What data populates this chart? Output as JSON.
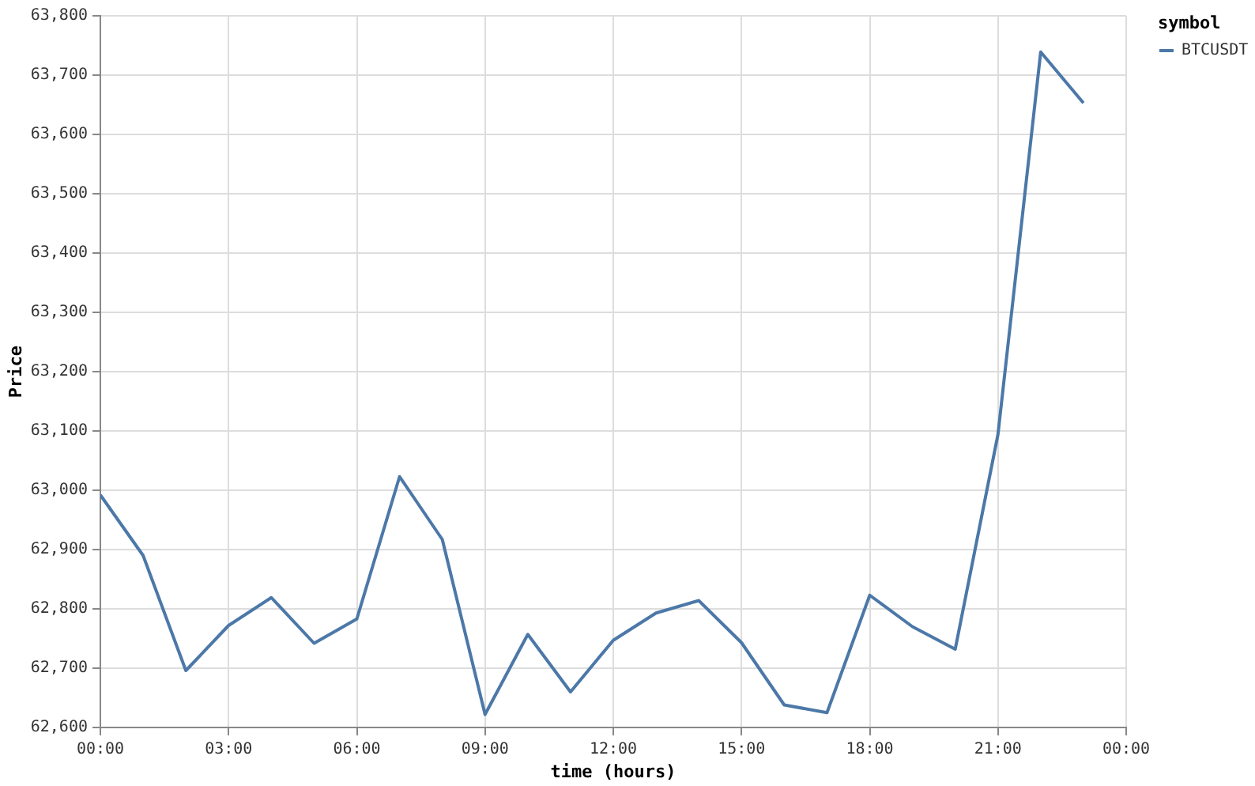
{
  "chart_data": {
    "type": "line",
    "xlabel": "time (hours)",
    "ylabel": "Price",
    "legend_title": "symbol",
    "legend": "top right",
    "grid": true,
    "x": [
      0,
      1,
      2,
      3,
      4,
      5,
      6,
      7,
      8,
      9,
      10,
      11,
      12,
      13,
      14,
      15,
      16,
      17,
      18,
      19,
      20,
      21,
      22,
      23
    ],
    "xlim": [
      0,
      24
    ],
    "xticks": [
      {
        "value": 0,
        "label": "00:00"
      },
      {
        "value": 3,
        "label": "03:00"
      },
      {
        "value": 6,
        "label": "06:00"
      },
      {
        "value": 9,
        "label": "09:00"
      },
      {
        "value": 12,
        "label": "12:00"
      },
      {
        "value": 15,
        "label": "15:00"
      },
      {
        "value": 18,
        "label": "18:00"
      },
      {
        "value": 21,
        "label": "21:00"
      },
      {
        "value": 24,
        "label": "00:00"
      }
    ],
    "ylim": [
      62600,
      63800
    ],
    "yticks": [
      {
        "value": 62600,
        "label": "62,600"
      },
      {
        "value": 62700,
        "label": "62,700"
      },
      {
        "value": 62800,
        "label": "62,800"
      },
      {
        "value": 62900,
        "label": "62,900"
      },
      {
        "value": 63000,
        "label": "63,000"
      },
      {
        "value": 63100,
        "label": "63,100"
      },
      {
        "value": 63200,
        "label": "63,200"
      },
      {
        "value": 63300,
        "label": "63,300"
      },
      {
        "value": 63400,
        "label": "63,400"
      },
      {
        "value": 63500,
        "label": "63,500"
      },
      {
        "value": 63600,
        "label": "63,600"
      },
      {
        "value": 63700,
        "label": "63,700"
      },
      {
        "value": 63800,
        "label": "63,800"
      }
    ],
    "series": [
      {
        "name": "BTCUSDT",
        "color": "#4c78a8",
        "values": [
          62992,
          62890,
          62696,
          62772,
          62819,
          62742,
          62783,
          63023,
          62917,
          62622,
          62757,
          62660,
          62747,
          62793,
          62814,
          62743,
          62638,
          62625,
          62823,
          62770,
          62732,
          63094,
          63739,
          63653
        ]
      }
    ]
  }
}
